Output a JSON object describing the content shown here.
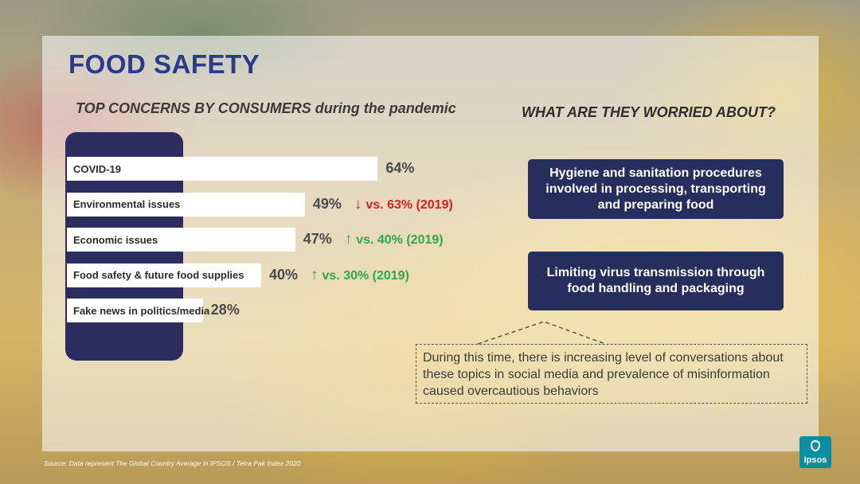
{
  "title": "FOOD SAFETY",
  "left_subtitle": {
    "bold_part": "TOP CONCERNS BY CONSUMERS",
    "rest": "during the pandemic"
  },
  "right_subtitle": "WHAT ARE THEY WORRIED ABOUT?",
  "chart_data": {
    "type": "bar",
    "orientation": "horizontal",
    "title": "TOP CONCERNS BY CONSUMERS during the pandemic",
    "categories": [
      "COVID-19",
      "Environmental issues",
      "Economic issues",
      "Food safety & future food supplies",
      "Fake news in politics/media"
    ],
    "values": [
      64,
      49,
      47,
      40,
      28
    ],
    "value_labels": [
      "64%",
      "49%",
      "47%",
      "40%",
      "28%"
    ],
    "unit": "%",
    "comparisons": [
      null,
      {
        "direction": "down",
        "text": "vs. 63% (2019)",
        "value_2019": 63
      },
      {
        "direction": "up",
        "text": "vs. 40% (2019)",
        "value_2019": 40
      },
      {
        "direction": "up",
        "text": "vs. 30% (2019)",
        "value_2019": 30
      },
      null
    ],
    "colors": {
      "bar": "#ffffff",
      "down": "#e02020",
      "up": "#2ea84a",
      "panel": "#2a2d5e"
    }
  },
  "worries": [
    "Hygiene and sanitation procedures involved in processing, transporting and preparing food",
    "Limiting virus transmission through food handling and packaging"
  ],
  "note": "During this time, there is increasing level of conversations about these topics in social media and prevalence of misinformation caused overcautious behaviors",
  "source": "Source: Data represent The Global Country Average in IPSOS / Tetra Pak Index 2020",
  "logo": {
    "text": "Ipsos",
    "icon": "ipsos-logo-icon",
    "color": "#0a8fa0"
  },
  "arrows": {
    "down": "↓",
    "up": "↑"
  }
}
